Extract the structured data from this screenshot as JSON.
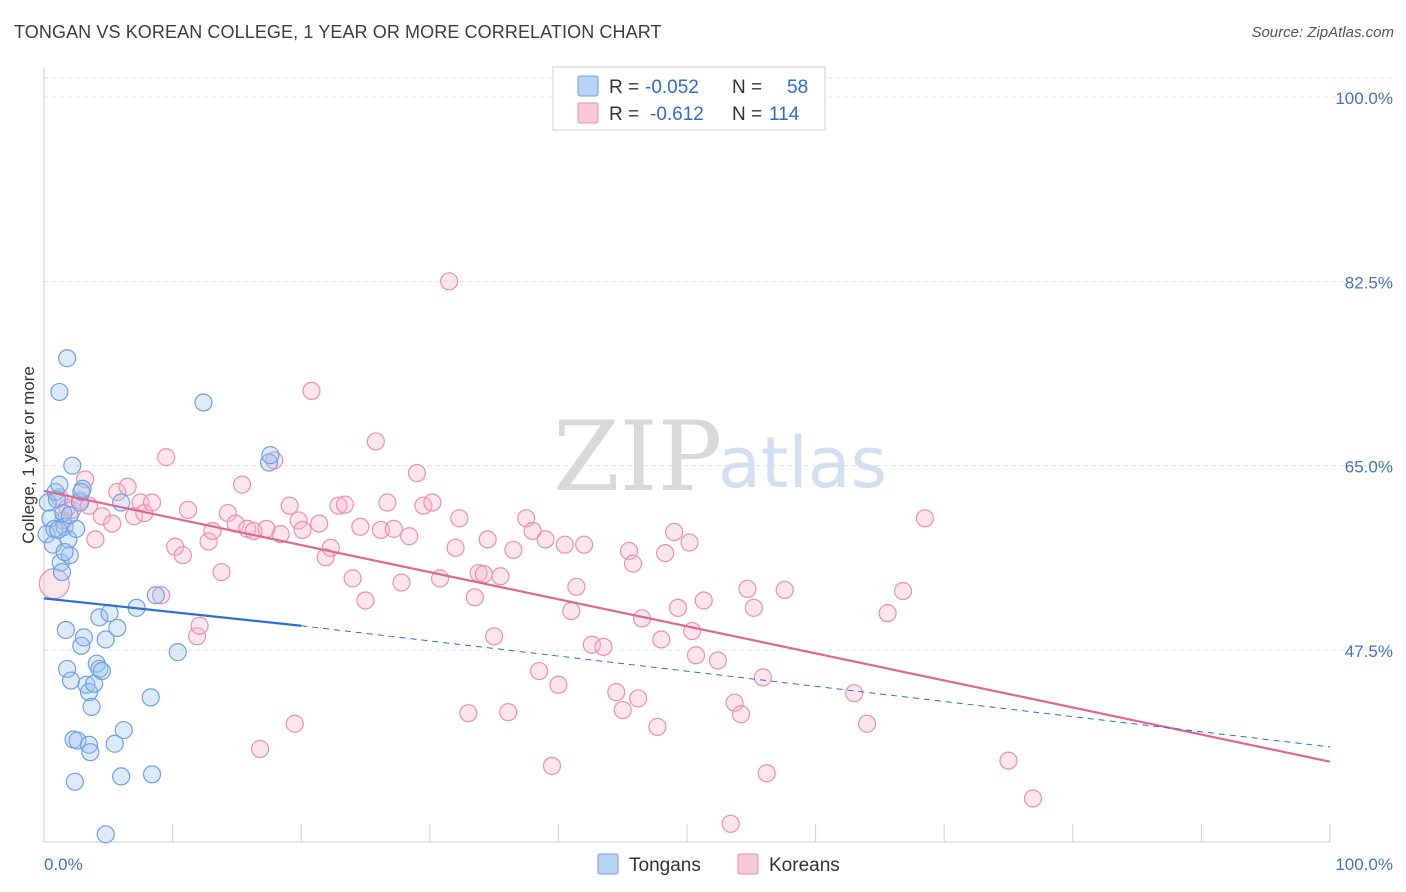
{
  "header": {
    "title": "TONGAN VS KOREAN COLLEGE, 1 YEAR OR MORE CORRELATION CHART",
    "source": "Source: ZipAtlas.com"
  },
  "watermark": {
    "zip": "ZIP",
    "atlas": "atlas"
  },
  "legend": {
    "rows": [
      {
        "r_label": "R =",
        "r_value": "-0.052",
        "n_label": "N =",
        "n_value": "58",
        "color": "#9ec3ee"
      },
      {
        "r_label": "R =",
        "r_value": "-0.612",
        "n_label": "N =",
        "n_value": "114",
        "color": "#f6b5c8"
      }
    ]
  },
  "bottom_legend": {
    "tongans": "Tongans",
    "koreans": "Koreans"
  },
  "chart_data": {
    "type": "scatter",
    "title": "TONGAN VS KOREAN COLLEGE, 1 YEAR OR MORE CORRELATION CHART",
    "xlabel": "",
    "ylabel": "College, 1 year or more",
    "xlim": [
      0,
      100
    ],
    "ylim": [
      30,
      102
    ],
    "x_tick_labels": [
      "0.0%",
      "100.0%"
    ],
    "y_ticks": [
      {
        "value": 100,
        "label": "100.0%"
      },
      {
        "value": 82.5,
        "label": "82.5%"
      },
      {
        "value": 65,
        "label": "65.0%"
      },
      {
        "value": 47.5,
        "label": "47.5%"
      }
    ],
    "grid": true,
    "legend_position": "top-center",
    "colors": {
      "tongans": "#6fa1e6",
      "koreans": "#ee8fae",
      "tongans_line": "#2a6fd6",
      "koreans_line": "#e06890"
    },
    "series": [
      {
        "name": "Tongans",
        "trend": {
          "x0": 0,
          "y0": 52.4,
          "x1": 20,
          "y1": 49.8,
          "dash_to_x": 100,
          "dash_to_y": 38.3
        },
        "points": [
          [
            0.2,
            58.5
          ],
          [
            0.3,
            61.5
          ],
          [
            0.5,
            60.0
          ],
          [
            0.7,
            57.5
          ],
          [
            0.8,
            59.0
          ],
          [
            0.9,
            62.5
          ],
          [
            1.0,
            61.8
          ],
          [
            1.2,
            63.2
          ],
          [
            1.3,
            55.8
          ],
          [
            1.5,
            60.5
          ],
          [
            1.6,
            59.2
          ],
          [
            1.8,
            75.2
          ],
          [
            1.2,
            72.0
          ],
          [
            1.9,
            58.0
          ],
          [
            2.0,
            56.5
          ],
          [
            2.2,
            65.0
          ],
          [
            2.5,
            59.0
          ],
          [
            2.8,
            61.5
          ],
          [
            3.0,
            62.8
          ],
          [
            2.9,
            62.5
          ],
          [
            1.6,
            56.8
          ],
          [
            1.4,
            54.9
          ],
          [
            1.7,
            49.4
          ],
          [
            1.8,
            45.7
          ],
          [
            2.1,
            44.6
          ],
          [
            2.3,
            39.0
          ],
          [
            2.4,
            35.0
          ],
          [
            2.6,
            38.9
          ],
          [
            2.9,
            47.9
          ],
          [
            3.1,
            48.7
          ],
          [
            3.3,
            44.2
          ],
          [
            3.5,
            43.5
          ],
          [
            3.5,
            38.5
          ],
          [
            3.6,
            37.8
          ],
          [
            3.7,
            42.1
          ],
          [
            3.9,
            44.3
          ],
          [
            4.1,
            46.2
          ],
          [
            4.3,
            45.7
          ],
          [
            4.5,
            45.5
          ],
          [
            4.3,
            50.6
          ],
          [
            4.8,
            48.5
          ],
          [
            5.1,
            51.0
          ],
          [
            5.5,
            38.6
          ],
          [
            5.7,
            49.6
          ],
          [
            6.0,
            35.5
          ],
          [
            6.2,
            39.9
          ],
          [
            6.0,
            61.5
          ],
          [
            7.2,
            51.5
          ],
          [
            8.3,
            43.0
          ],
          [
            8.4,
            35.7
          ],
          [
            8.7,
            52.7
          ],
          [
            10.4,
            47.3
          ],
          [
            12.4,
            71.0
          ],
          [
            17.5,
            65.3
          ],
          [
            17.6,
            66.0
          ],
          [
            4.8,
            30.0
          ],
          [
            1.1,
            58.9
          ],
          [
            2.0,
            60.3
          ]
        ]
      },
      {
        "name": "Koreans",
        "trend": {
          "x0": 0,
          "y0": 62.6,
          "x1": 100,
          "y1": 36.9
        },
        "points": [
          [
            0.8,
            53.8
          ],
          [
            1.2,
            62.0
          ],
          [
            1.5,
            59.8
          ],
          [
            1.8,
            61.0
          ],
          [
            2.2,
            60.8
          ],
          [
            2.8,
            61.7
          ],
          [
            3.2,
            63.7
          ],
          [
            3.5,
            61.2
          ],
          [
            4.0,
            58.0
          ],
          [
            4.5,
            60.2
          ],
          [
            5.3,
            59.5
          ],
          [
            5.7,
            62.5
          ],
          [
            6.5,
            63.0
          ],
          [
            7.0,
            60.2
          ],
          [
            7.5,
            61.5
          ],
          [
            7.8,
            60.5
          ],
          [
            8.4,
            61.5
          ],
          [
            9.1,
            52.7
          ],
          [
            9.5,
            65.8
          ],
          [
            10.2,
            57.3
          ],
          [
            10.8,
            56.5
          ],
          [
            11.2,
            60.8
          ],
          [
            11.9,
            48.8
          ],
          [
            12.1,
            49.8
          ],
          [
            12.8,
            57.8
          ],
          [
            13.1,
            58.8
          ],
          [
            13.8,
            54.9
          ],
          [
            14.3,
            60.5
          ],
          [
            14.9,
            59.5
          ],
          [
            15.4,
            63.2
          ],
          [
            15.8,
            59.0
          ],
          [
            16.3,
            58.8
          ],
          [
            16.8,
            38.1
          ],
          [
            17.3,
            59.0
          ],
          [
            17.9,
            65.5
          ],
          [
            18.4,
            58.5
          ],
          [
            19.1,
            61.2
          ],
          [
            19.5,
            40.5
          ],
          [
            19.8,
            59.8
          ],
          [
            20.1,
            58.9
          ],
          [
            20.8,
            72.1
          ],
          [
            21.4,
            59.5
          ],
          [
            21.9,
            56.3
          ],
          [
            22.3,
            57.2
          ],
          [
            22.9,
            61.2
          ],
          [
            23.4,
            61.3
          ],
          [
            24.0,
            54.3
          ],
          [
            24.6,
            59.2
          ],
          [
            25.0,
            52.2
          ],
          [
            25.8,
            67.3
          ],
          [
            26.2,
            58.9
          ],
          [
            26.7,
            61.5
          ],
          [
            27.2,
            59.0
          ],
          [
            27.8,
            53.9
          ],
          [
            28.4,
            58.3
          ],
          [
            29.0,
            64.3
          ],
          [
            29.5,
            61.2
          ],
          [
            30.2,
            61.5
          ],
          [
            30.8,
            54.3
          ],
          [
            31.5,
            82.5
          ],
          [
            32.0,
            57.2
          ],
          [
            32.3,
            60.0
          ],
          [
            33.0,
            41.5
          ],
          [
            33.5,
            52.5
          ],
          [
            33.8,
            54.8
          ],
          [
            34.5,
            58.0
          ],
          [
            35.0,
            48.8
          ],
          [
            35.5,
            54.5
          ],
          [
            36.1,
            41.6
          ],
          [
            36.5,
            57.0
          ],
          [
            37.5,
            60.0
          ],
          [
            38.0,
            58.8
          ],
          [
            38.5,
            45.5
          ],
          [
            39.0,
            58.0
          ],
          [
            39.5,
            36.5
          ],
          [
            40.0,
            44.2
          ],
          [
            40.5,
            57.5
          ],
          [
            41.0,
            51.2
          ],
          [
            41.4,
            53.5
          ],
          [
            42.0,
            57.5
          ],
          [
            42.6,
            48.0
          ],
          [
            43.5,
            47.8
          ],
          [
            44.5,
            43.5
          ],
          [
            45.0,
            41.8
          ],
          [
            45.5,
            56.9
          ],
          [
            45.8,
            55.7
          ],
          [
            46.2,
            42.9
          ],
          [
            46.5,
            50.5
          ],
          [
            47.7,
            40.2
          ],
          [
            48.0,
            48.5
          ],
          [
            48.3,
            56.7
          ],
          [
            49.0,
            58.7
          ],
          [
            49.3,
            51.5
          ],
          [
            50.2,
            57.7
          ],
          [
            50.4,
            49.3
          ],
          [
            50.7,
            47.0
          ],
          [
            51.3,
            52.2
          ],
          [
            52.4,
            46.5
          ],
          [
            53.4,
            31.0
          ],
          [
            53.7,
            42.5
          ],
          [
            54.2,
            41.4
          ],
          [
            54.7,
            53.3
          ],
          [
            55.2,
            51.5
          ],
          [
            55.9,
            44.9
          ],
          [
            56.2,
            35.8
          ],
          [
            57.6,
            53.2
          ],
          [
            63.0,
            43.4
          ],
          [
            64.0,
            40.5
          ],
          [
            65.6,
            51.0
          ],
          [
            66.8,
            53.1
          ],
          [
            68.5,
            60.0
          ],
          [
            75.0,
            37.0
          ],
          [
            76.9,
            33.4
          ],
          [
            34.2,
            54.7
          ]
        ]
      }
    ]
  }
}
